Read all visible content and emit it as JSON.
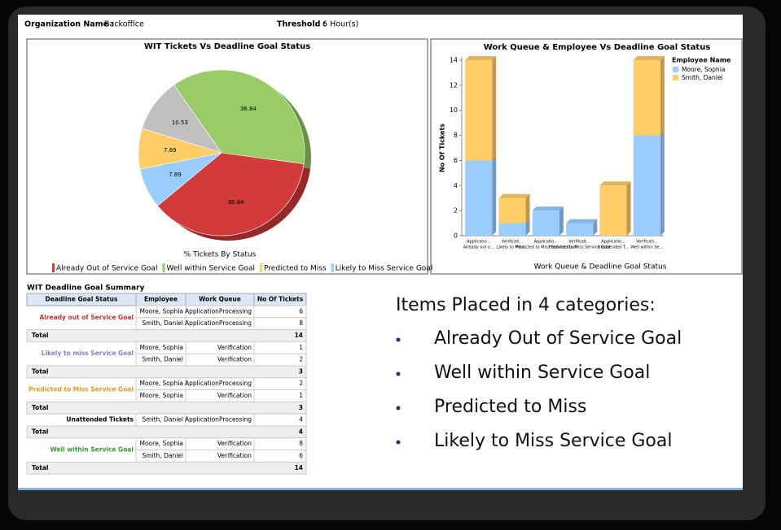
{
  "header": {
    "org_label": "Organization Name :",
    "org_value": "Backoffice",
    "threshold_label": "Threshold :",
    "threshold_value": "6 Hour(s)"
  },
  "pie_chart": {
    "type": "pie",
    "title": "WIT Tickets Vs Deadline Goal Status",
    "subtitle": "% Tickets By Status",
    "categories": [
      "Already Out of Service Goal",
      "Well within Service Goal",
      "Predicted to Miss",
      "Likely to Miss Service Goal",
      null
    ],
    "values": [
      36.84,
      36.84,
      7.89,
      7.89,
      10.53
    ],
    "colors": [
      "#d43a3a",
      "#99cc66",
      "#ffcc66",
      "#99ccff",
      "#c0c0c0"
    ]
  },
  "bar_chart": {
    "type": "stacked_bar",
    "title": "Work Queue & Employee Vs Deadline Goal Status",
    "x_label": "Work Queue & Deadline Goal Status",
    "y_label": "No Of Tickets",
    "legend_title": "Employee Name",
    "categories": [
      [
        "Applicatio...",
        "Already out o..."
      ],
      [
        "Verificati...",
        "Likely to Miss..."
      ],
      [
        "Applicatio...",
        "Predicted to Miss Service Goal"
      ],
      [
        "Verificati...",
        "Predicted to Miss Service Goal"
      ],
      [
        "Applicatio...",
        "Unattended T..."
      ],
      [
        "Verificati...",
        "Well within Se..."
      ]
    ],
    "series": [
      {
        "name": "Moore, Sophia",
        "color": "#99ccff",
        "values": [
          6,
          1,
          2,
          1,
          0,
          8
        ]
      },
      {
        "name": "Smith, Daniel",
        "color": "#ffcc66",
        "values": [
          8,
          2,
          0,
          0,
          4,
          6
        ]
      }
    ],
    "ylim": [
      0,
      14
    ],
    "yticks": [
      0,
      2,
      4,
      6,
      8,
      10,
      12,
      14
    ],
    "legend": "top-right"
  },
  "table": {
    "title": "WIT Deadline Goal Summary",
    "columns": [
      "Deadline Goal Status",
      "Employee",
      "Work Queue",
      "No Of Tickets"
    ],
    "total_label": "Total",
    "groups": [
      {
        "status": "Already out of Service Goal",
        "color": "#cc3333",
        "rows": [
          [
            "Moore, Sophia",
            "ApplicationProcessing",
            6
          ],
          [
            "Smith, Daniel",
            "ApplicationProcessing",
            8
          ]
        ],
        "total": 14
      },
      {
        "status": "Likely to miss Service Goal",
        "color": "#8080cc",
        "rows": [
          [
            "Moore, Sophia",
            "Verification",
            1
          ],
          [
            "Smith, Daniel",
            "Verification",
            2
          ]
        ],
        "total": 3
      },
      {
        "status": "Predicted to Miss Service Goal",
        "color": "#e09a1a",
        "rows": [
          [
            "Moore, Sophia",
            "ApplicationProcessing",
            2
          ],
          [
            "Moore, Sophia",
            "Verification",
            1
          ]
        ],
        "total": 3
      },
      {
        "status": "Unattended Tickets",
        "color": "#000000",
        "rows": [
          [
            "Smith, Daniel",
            "ApplicationProcessing",
            4
          ]
        ],
        "total": 4
      },
      {
        "status": "Well within Service Goal",
        "color": "#339933",
        "rows": [
          [
            "Moore, Sophia",
            "Verification",
            8
          ],
          [
            "Smith, Daniel",
            "Verification",
            6
          ]
        ],
        "total": 14
      }
    ]
  },
  "bullets": {
    "heading": "Items Placed in 4 categories:",
    "items": [
      "Already Out of Service Goal",
      "Well within Service Goal",
      "Predicted to Miss",
      "Likely to Miss Service Goal"
    ]
  }
}
